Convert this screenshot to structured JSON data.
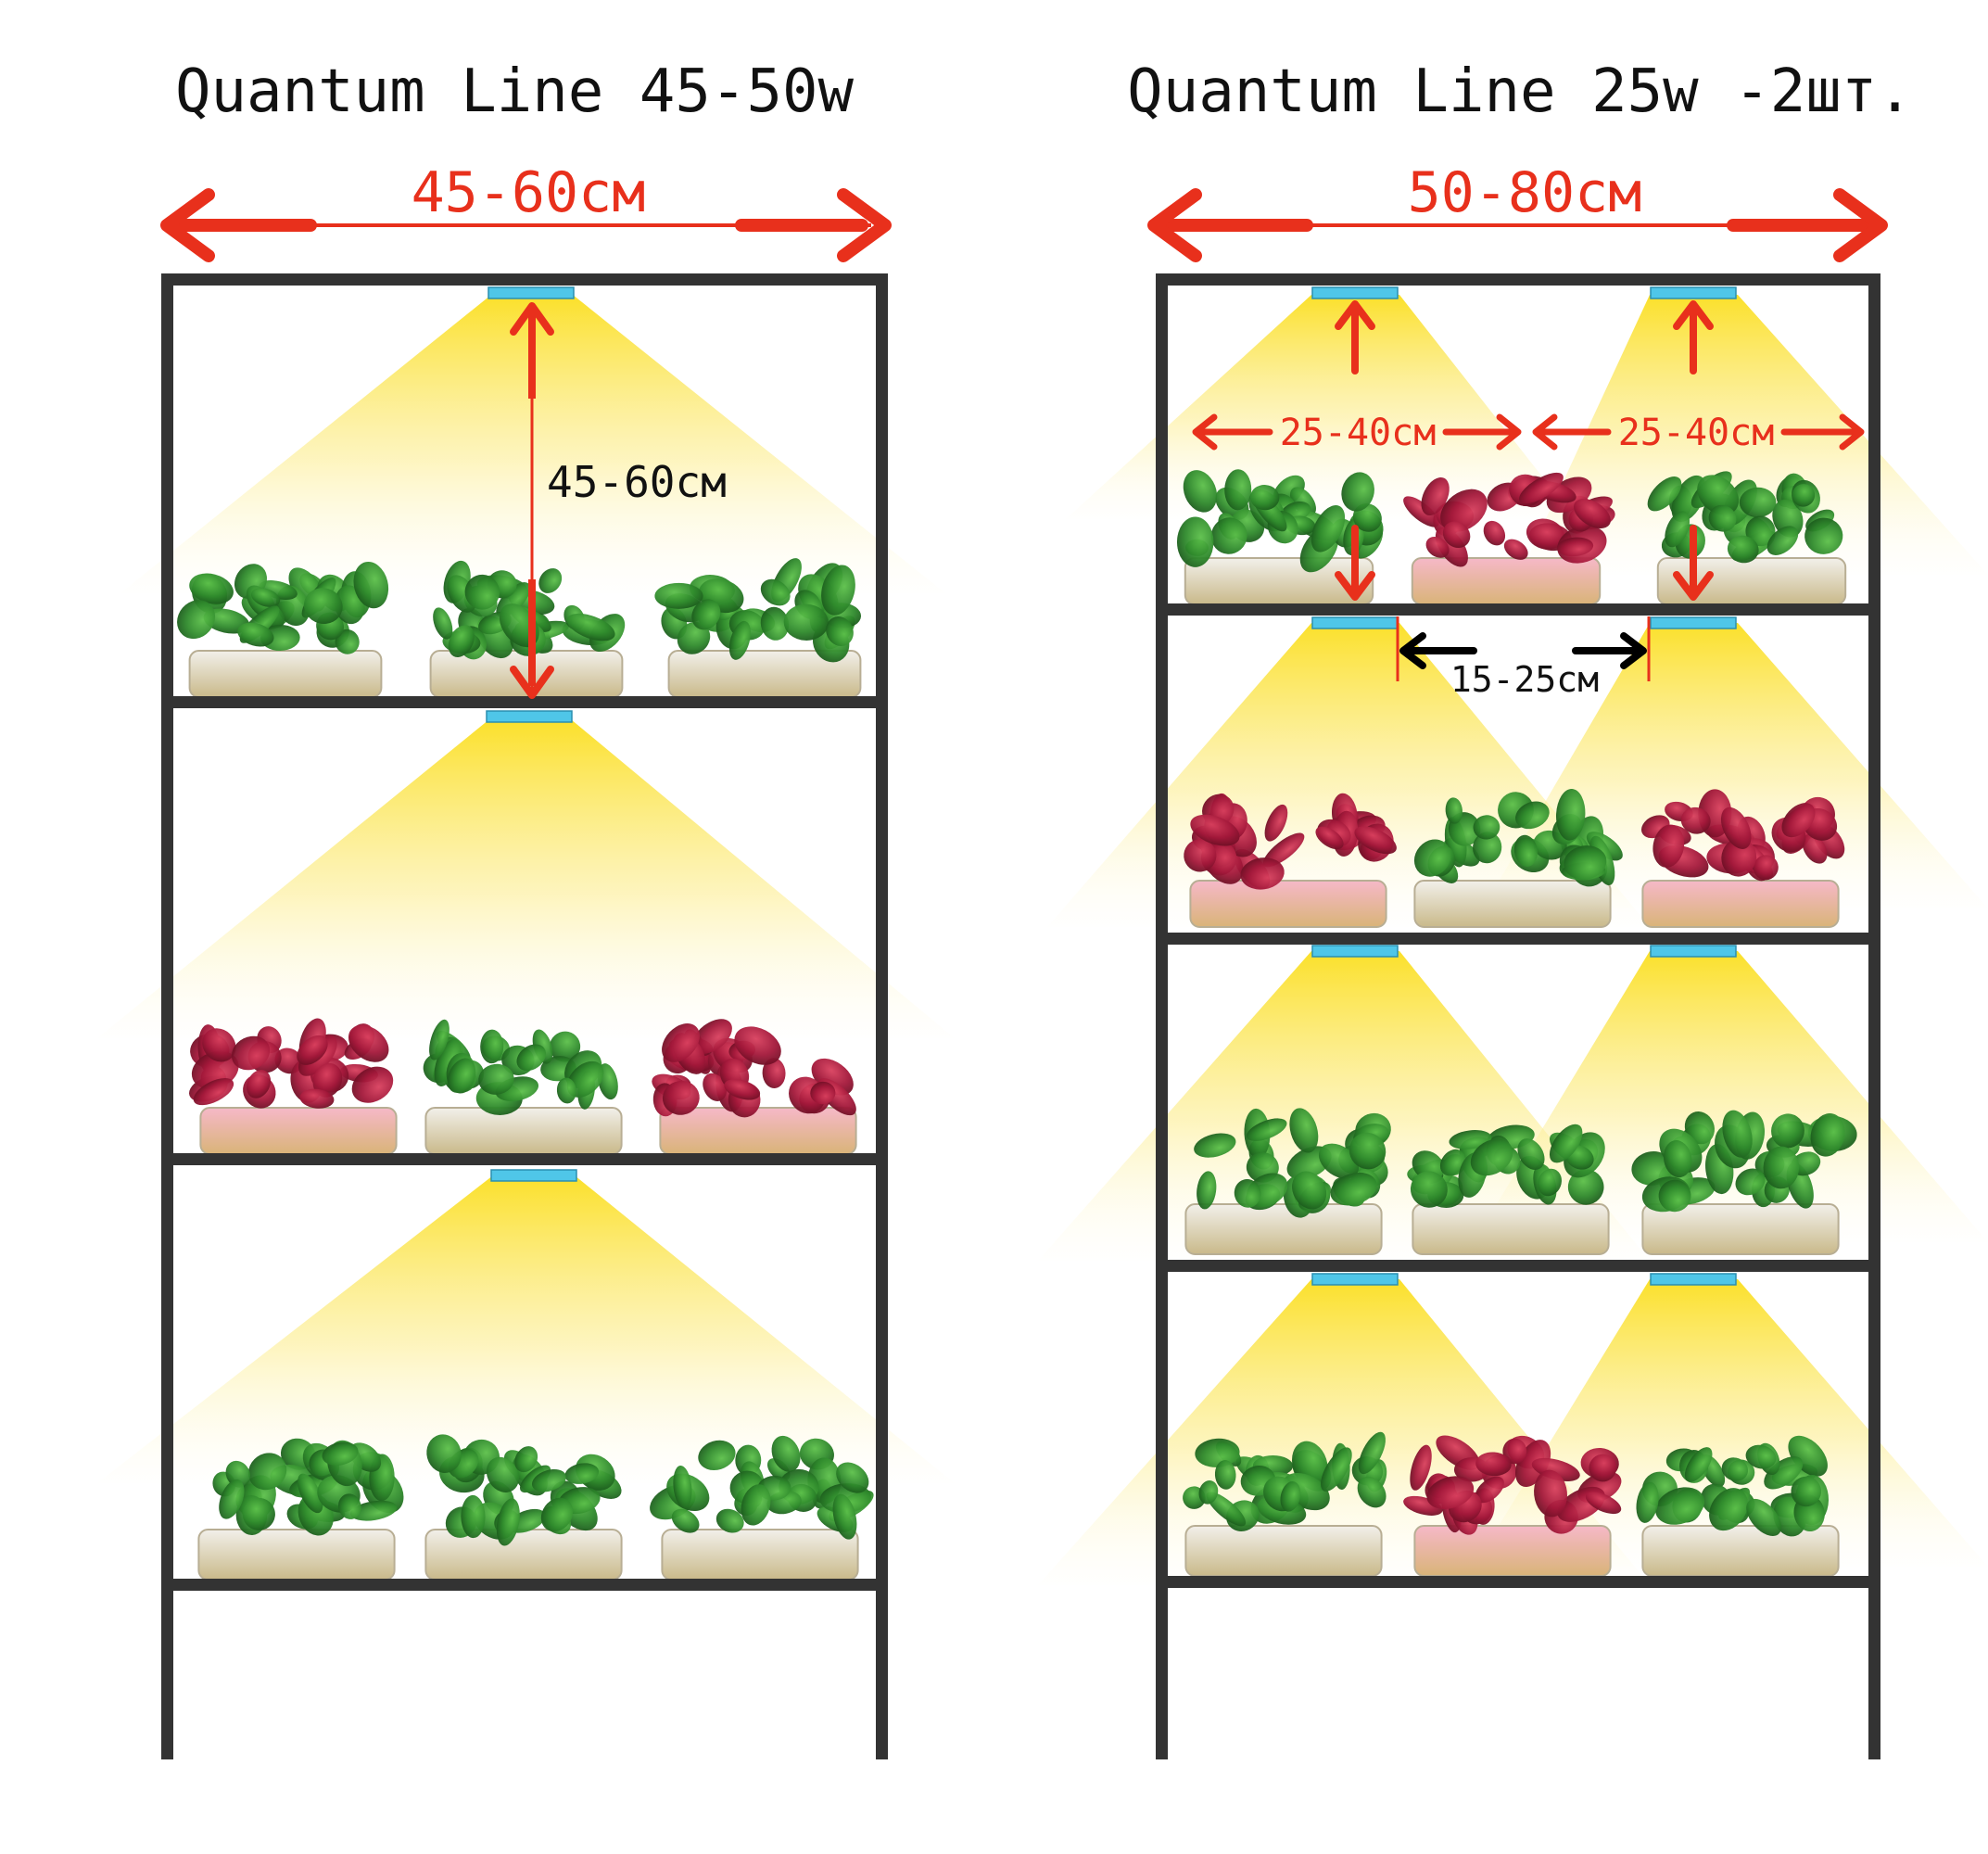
{
  "left": {
    "title": "Quantum Line 45-50w",
    "width_label": "45-60см",
    "height_label": "45-60см",
    "trays": [
      [
        "green",
        "green",
        "green"
      ],
      [
        "red",
        "green",
        "red"
      ],
      [
        "green",
        "green",
        "green"
      ]
    ]
  },
  "right": {
    "title": "Quantum Line 25w -2шт.",
    "width_label": "50-80см",
    "spread_label_left": "25-40см",
    "spread_label_right": "25-40см",
    "gap_label": "15-25см",
    "trays": [
      [
        "green",
        "red",
        "green"
      ],
      [
        "red",
        "green",
        "red"
      ],
      [
        "green",
        "green",
        "green"
      ],
      [
        "green",
        "red",
        "green"
      ]
    ]
  },
  "colors": {
    "frame": "#333333",
    "arrow_red": "#e8301c",
    "led_bar": "#4fc6e8",
    "light_beam": "#fbe23a",
    "green_leaf": "#2f8a2c",
    "red_leaf": "#b0203f",
    "tray": "#e9e2cc"
  }
}
